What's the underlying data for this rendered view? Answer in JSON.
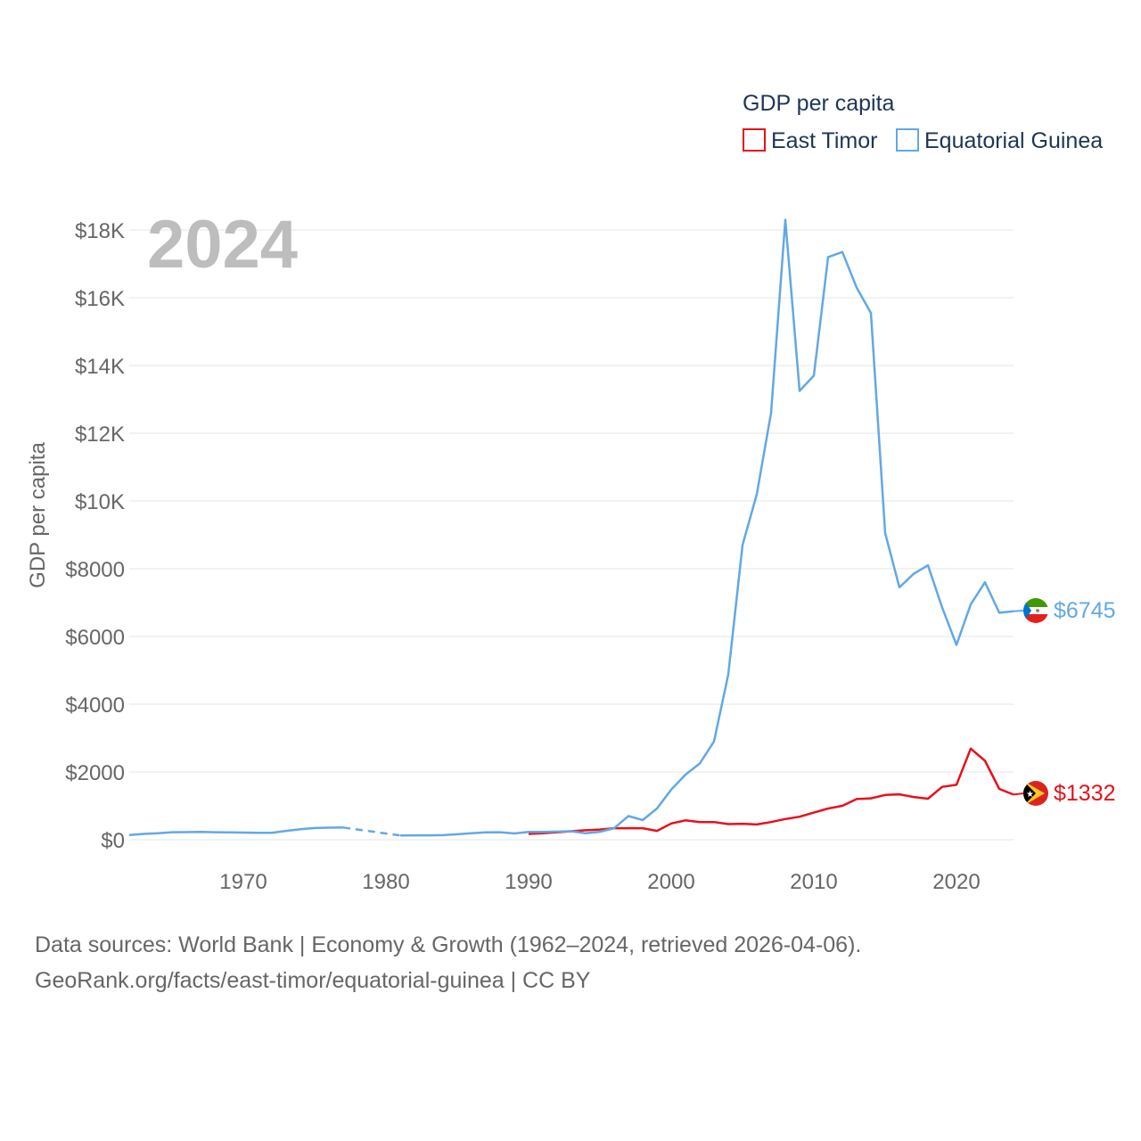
{
  "chart_data": {
    "type": "line",
    "year_label": "2024",
    "legend_title": "GDP per capita",
    "ylabel": "GDP per capita",
    "xlabel": "",
    "xlim": [
      1962,
      2024
    ],
    "ylim": [
      0,
      18000
    ],
    "x_ticks": [
      1970,
      1980,
      1990,
      2000,
      2010,
      2020
    ],
    "x_tick_labels": [
      "1970",
      "1980",
      "1990",
      "2000",
      "2010",
      "2020"
    ],
    "y_ticks": [
      0,
      2000,
      4000,
      6000,
      8000,
      10000,
      12000,
      14000,
      16000,
      18000
    ],
    "y_tick_labels": [
      "$0",
      "$2000",
      "$4000",
      "$6000",
      "$8000",
      "$10K",
      "$12K",
      "$14K",
      "$16K",
      "$18K"
    ],
    "grid": true,
    "series": [
      {
        "name": "East Timor",
        "color": "#e8101b",
        "end_label": "$1332",
        "x": [
          1990,
          1991,
          1992,
          1993,
          1994,
          1995,
          1996,
          1997,
          1998,
          1999,
          2000,
          2001,
          2002,
          2003,
          2004,
          2005,
          2006,
          2007,
          2008,
          2009,
          2010,
          2011,
          2012,
          2013,
          2014,
          2015,
          2016,
          2017,
          2018,
          2019,
          2020,
          2021,
          2022,
          2023,
          2024
        ],
        "y": [
          170,
          190,
          220,
          250,
          280,
          300,
          340,
          340,
          340,
          260,
          480,
          570,
          520,
          520,
          460,
          470,
          450,
          520,
          610,
          680,
          800,
          920,
          1000,
          1200,
          1220,
          1320,
          1340,
          1260,
          1210,
          1560,
          1620,
          2690,
          2330,
          1500,
          1332
        ]
      },
      {
        "name": "Equatorial Guinea",
        "color": "#62a8e5",
        "end_label": "$6745",
        "x": [
          1962,
          1963,
          1964,
          1965,
          1966,
          1967,
          1968,
          1969,
          1970,
          1971,
          1972,
          1973,
          1974,
          1975,
          1976,
          1977,
          1981,
          1982,
          1983,
          1984,
          1985,
          1986,
          1987,
          1988,
          1989,
          1990,
          1991,
          1992,
          1993,
          1994,
          1995,
          1996,
          1997,
          1998,
          1999,
          2000,
          2001,
          2002,
          2003,
          2004,
          2005,
          2006,
          2007,
          2008,
          2009,
          2010,
          2011,
          2012,
          2013,
          2014,
          2015,
          2016,
          2017,
          2018,
          2019,
          2020,
          2021,
          2022,
          2023,
          2024
        ],
        "y": [
          140,
          170,
          190,
          220,
          225,
          230,
          220,
          215,
          210,
          205,
          205,
          260,
          310,
          345,
          355,
          360,
          125,
          130,
          130,
          135,
          160,
          190,
          215,
          220,
          185,
          230,
          230,
          240,
          250,
          190,
          235,
          340,
          700,
          580,
          920,
          1480,
          1920,
          2250,
          2900,
          4880,
          8700,
          10200,
          12600,
          18300,
          13250,
          13700,
          17200,
          17350,
          16300,
          15550,
          9050,
          7450,
          7850,
          8100,
          6850,
          5750,
          6950,
          7600,
          6700,
          6745
        ],
        "dashed_gap": [
          1977,
          1981
        ]
      }
    ]
  },
  "footer": {
    "line1": "Data sources: World Bank | Economy & Growth (1962–2024, retrieved 2026-04-06).",
    "line2": "GeoRank.org/facts/east-timor/equatorial-guinea | CC BY"
  },
  "icons": {
    "east_timor_flag": "east-timor-flag-icon",
    "equatorial_guinea_flag": "equatorial-guinea-flag-icon"
  }
}
